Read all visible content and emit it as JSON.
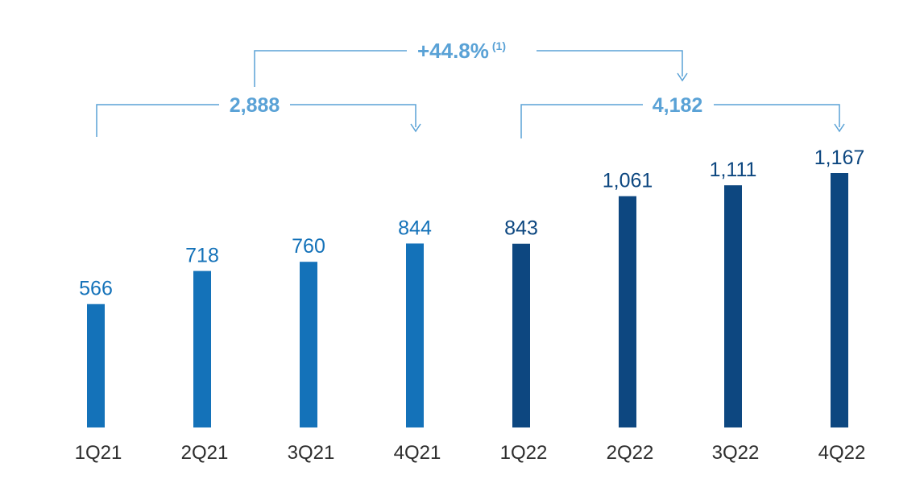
{
  "chart_data": {
    "type": "bar",
    "categories": [
      "1Q21",
      "2Q21",
      "3Q21",
      "4Q21",
      "1Q22",
      "2Q22",
      "3Q22",
      "4Q22"
    ],
    "values": [
      566,
      718,
      760,
      844,
      843,
      1061,
      1111,
      1167
    ],
    "value_labels": [
      "566",
      "718",
      "760",
      "844",
      "843",
      "1,061",
      "1,111",
      "1,167"
    ],
    "colors": {
      "year_2021": "#1472b9",
      "year_2022": "#0d4780",
      "bracket": "#5aa2d6"
    },
    "annotations": {
      "total_2021": "2,888",
      "total_2022": "4,182",
      "growth": "+44.8%",
      "growth_note": "(1)"
    },
    "ylim": [
      0,
      1167
    ],
    "grid": false,
    "legend": "none"
  }
}
